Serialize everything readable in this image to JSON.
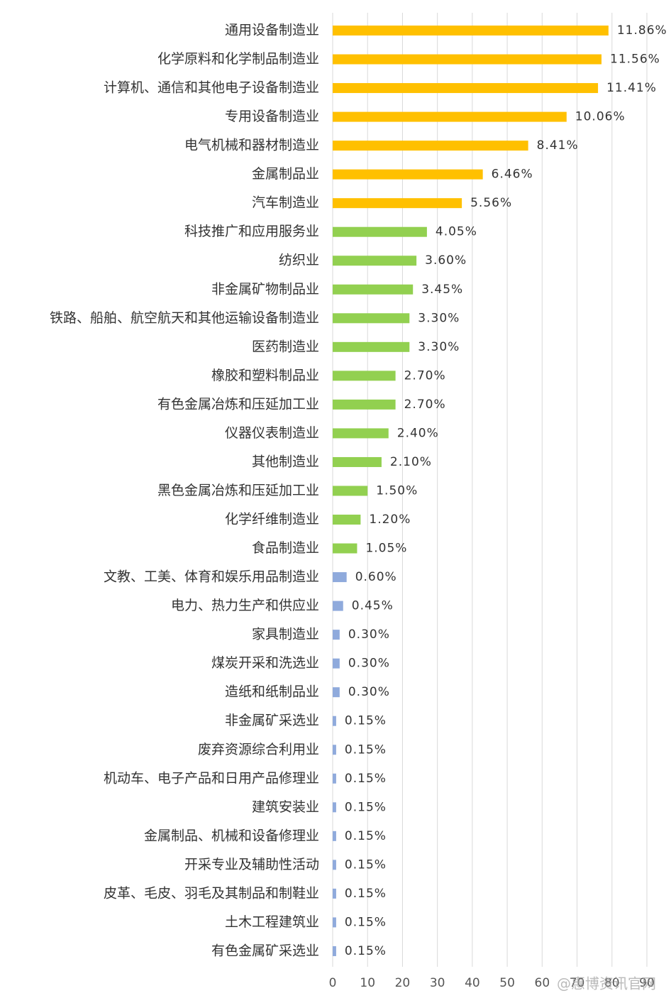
{
  "chart_data": {
    "type": "barh",
    "categories": [
      "通用设备制造业",
      "化学原料和化学制品制造业",
      "计算机、通信和其他电子设备制造业",
      "专用设备制造业",
      "电气机械和器材制造业",
      "金属制品业",
      "汽车制造业",
      "科技推广和应用服务业",
      "纺织业",
      "非金属矿物制品业",
      "铁路、船舶、航空航天和其他运输设备制造业",
      "医药制造业",
      "橡胶和塑料制品业",
      "有色金属冶炼和压延加工业",
      "仪器仪表制造业",
      "其他制造业",
      "黑色金属冶炼和压延加工业",
      "化学纤维制造业",
      "食品制造业",
      "文教、工美、体育和娱乐用品制造业",
      "电力、热力生产和供应业",
      "家具制造业",
      "煤炭开采和洗选业",
      "造纸和纸制品业",
      "非金属矿采选业",
      "废弃资源综合利用业",
      "机动车、电子产品和日用产品修理业",
      "建筑安装业",
      "金属制品、机械和设备修理业",
      "开采专业及辅助性活动",
      "皮革、毛皮、羽毛及其制品和制鞋业",
      "土木工程建筑业",
      "有色金属矿采选业"
    ],
    "values": [
      79,
      77,
      76,
      67,
      56,
      43,
      37,
      27,
      24,
      23,
      22,
      22,
      18,
      18,
      16,
      14,
      10,
      8,
      7,
      4,
      3,
      2,
      2,
      2,
      1,
      1,
      1,
      1,
      1,
      1,
      1,
      1,
      1
    ],
    "value_labels": [
      "11.86%",
      "11.56%",
      "11.41%",
      "10.06%",
      "8.41%",
      "6.46%",
      "5.56%",
      "4.05%",
      "3.60%",
      "3.45%",
      "3.30%",
      "3.30%",
      "2.70%",
      "2.70%",
      "2.40%",
      "2.10%",
      "1.50%",
      "1.20%",
      "1.05%",
      "0.60%",
      "0.45%",
      "0.30%",
      "0.30%",
      "0.30%",
      "0.15%",
      "0.15%",
      "0.15%",
      "0.15%",
      "0.15%",
      "0.15%",
      "0.15%",
      "0.15%",
      "0.15%"
    ],
    "colors": [
      "#ffc000",
      "#ffc000",
      "#ffc000",
      "#ffc000",
      "#ffc000",
      "#ffc000",
      "#ffc000",
      "#92d050",
      "#92d050",
      "#92d050",
      "#92d050",
      "#92d050",
      "#92d050",
      "#92d050",
      "#92d050",
      "#92d050",
      "#92d050",
      "#92d050",
      "#92d050",
      "#8faadc",
      "#8faadc",
      "#8faadc",
      "#8faadc",
      "#8faadc",
      "#8faadc",
      "#8faadc",
      "#8faadc",
      "#8faadc",
      "#8faadc",
      "#8faadc",
      "#8faadc",
      "#8faadc",
      "#8faadc"
    ],
    "xlim": [
      0,
      90
    ],
    "xticks": [
      0,
      10,
      20,
      30,
      40,
      50,
      60,
      70,
      80,
      90
    ],
    "grid": true,
    "watermark": "@惠博资讯官网"
  }
}
